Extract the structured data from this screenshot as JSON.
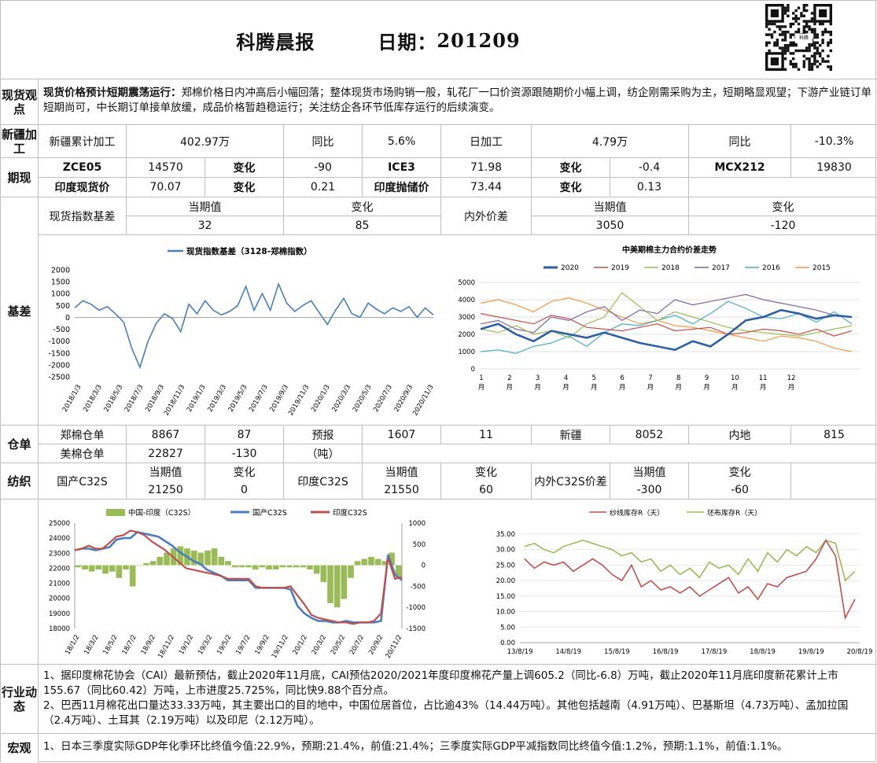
{
  "header": {
    "title": "科腾晨报",
    "date_label": "日期：",
    "date": "201209"
  },
  "spot": {
    "label": "现货观点",
    "headline": "现货价格预计短期震荡运行：",
    "body": "郑棉价格日内冲高后小幅回落；整体现货市场购销一般，轧花厂一口价资源跟随期价小幅上调，纺企刚需采购为主，短期略显观望；下游产业链订单短期尚可，中长期订单接单放缓，成品价格暂趋稳运行；关注纺企各环节低库存运行的后续演变。"
  },
  "xinjiang": {
    "label": "新疆加工",
    "cum_label": "新疆累计加工",
    "cum_value": "402.97万",
    "cum_yoy_label": "同比",
    "cum_yoy": "5.6%",
    "daily_label": "日加工",
    "daily_value": "4.79万",
    "daily_yoy_label": "同比",
    "daily_yoy": "-10.3%"
  },
  "futures": {
    "label": "期现",
    "r1": [
      "ZCE05",
      "14570",
      "变化",
      "-90",
      "ICE3",
      "71.98",
      "变化",
      "-0.4",
      "MCX212",
      "19830"
    ],
    "r2": [
      "印度现货价",
      "70.07",
      "变化",
      "0.21",
      "印度抛储价",
      "73.44",
      "变化",
      "0.13"
    ]
  },
  "basis": {
    "label": "基差",
    "spot_index_label": "现货指数基差",
    "cur_label": "当期值",
    "chg_label": "变化",
    "spot_index_cur": "32",
    "spot_index_chg": "85",
    "inout_label": "内外价差",
    "inout_cur": "3050",
    "inout_chg": "-120"
  },
  "chart_data": [
    {
      "type": "line",
      "title": "",
      "legend": "现货指数基差（3128-郑棉指数）",
      "ylim": [
        -2500,
        2000
      ],
      "yticks": [
        "2000",
        "1500",
        "1000",
        "500",
        "0",
        "-500",
        "-1000",
        "-1500",
        "-2000",
        "-2500"
      ],
      "x_labels": [
        "2018/1/3",
        "2018/3/3",
        "2018/5/3",
        "2018/7/3",
        "2018/9/3",
        "2018/11/3",
        "2019/1/3",
        "2019/3/3",
        "2019/5/3",
        "2019/7/3",
        "2019/9/3",
        "2019/11/3",
        "2020/1/3",
        "2020/3/3",
        "2020/5/3",
        "2020/7/3",
        "2020/9/3",
        "2020/11/3"
      ],
      "series": [
        {
          "name": "现货指数基差（3128-郑棉指数）",
          "color": "#4a7ebb",
          "values": [
            400,
            700,
            550,
            300,
            450,
            150,
            -200,
            -1300,
            -2100,
            -1000,
            -250,
            150,
            -50,
            -600,
            550,
            150,
            700,
            300,
            100,
            250,
            500,
            1300,
            300,
            1000,
            300,
            1400,
            600,
            250,
            500,
            700,
            200,
            -300,
            300,
            800,
            150,
            0,
            600,
            350,
            150,
            400,
            250,
            450,
            0,
            400,
            100
          ]
        }
      ]
    },
    {
      "type": "line",
      "title": "中美期棉主力合约价差走势",
      "ylim": [
        0,
        5000
      ],
      "yticks": [
        "5000",
        "4000",
        "3000",
        "2000",
        "1000",
        "0"
      ],
      "x_labels": [
        "1\n月",
        "2\n月",
        "3\n月",
        "4\n月",
        "5\n月",
        "6\n月",
        "7\n月",
        "8\n月",
        "9\n月",
        "10\n月",
        "11\n月",
        "12\n月"
      ],
      "series": [
        {
          "name": "2020",
          "color": "#2e5fa1",
          "values": [
            2300,
            2600,
            2000,
            1600,
            2200,
            2000,
            1800,
            2100,
            1800,
            1500,
            1300,
            1100,
            1600,
            1300,
            2000,
            2800,
            3000,
            3400,
            3200,
            2900,
            3100,
            3000
          ]
        },
        {
          "name": "2019",
          "color": "#c0504d",
          "values": [
            3200,
            3000,
            2800,
            2600,
            3100,
            2900,
            2400,
            2300,
            2200,
            2400,
            2600,
            2200,
            2300,
            2400,
            2000,
            2100,
            2300,
            2200,
            2000,
            2300,
            1900,
            2200
          ]
        },
        {
          "name": "2018",
          "color": "#9bbb59",
          "values": [
            2300,
            2100,
            2500,
            2000,
            2200,
            1800,
            2600,
            3000,
            4400,
            3600,
            2800,
            3300,
            3000,
            2700,
            2400,
            2200,
            2100,
            2000,
            1900,
            2100,
            2300,
            2500
          ]
        },
        {
          "name": "2017",
          "color": "#8064a2",
          "values": [
            2600,
            2800,
            2300,
            2100,
            3000,
            2800,
            3300,
            3600,
            2800,
            3400,
            3200,
            4000,
            3700,
            3900,
            4100,
            4300,
            4000,
            3800,
            3600,
            3400,
            3100,
            3000
          ]
        },
        {
          "name": "2016",
          "color": "#4bacc6",
          "values": [
            1000,
            1100,
            900,
            1300,
            1500,
            1900,
            1300,
            2100,
            2600,
            2500,
            2800,
            3100,
            2600,
            3200,
            3900,
            3500,
            3000,
            2900,
            3200,
            2700,
            3300,
            2600
          ]
        },
        {
          "name": "2015",
          "color": "#f79646",
          "values": [
            3800,
            4000,
            3700,
            3300,
            3900,
            4100,
            3800,
            3400,
            3000,
            2600,
            2800,
            2500,
            2400,
            2200,
            2000,
            1800,
            1600,
            1900,
            1800,
            1600,
            1200,
            1000
          ]
        }
      ]
    },
    {
      "type": "bar",
      "title": "",
      "legend": [
        "中国-印度（C32S）",
        "国产C32S",
        "印度C32S"
      ],
      "ylim": [
        18000,
        25000
      ],
      "yticks": [
        "25000",
        "24000",
        "23000",
        "22000",
        "21000",
        "20000",
        "19000",
        "18000"
      ],
      "y2lim": [
        -1500,
        1000
      ],
      "y2ticks": [
        "1000",
        "500",
        "0",
        "-500",
        "-1000",
        "-1500"
      ],
      "x_labels": [
        "18/1/2",
        "18/3/2",
        "18/5/2",
        "18/7/2",
        "18/9/2",
        "18/11/2",
        "19/1/2",
        "19/3/2",
        "19/5/2",
        "19/7/2",
        "19/9/2",
        "19/11/2",
        "20/1/2",
        "20/3/2",
        "20/5/2",
        "20/7/2",
        "20/9/2",
        "20/11/2"
      ],
      "series": [
        {
          "name": "中国-印度（C32S）",
          "color": "#9bbb59",
          "values": [
            -50,
            -100,
            -150,
            -100,
            -200,
            -150,
            -300,
            -100,
            -500,
            0,
            50,
            100,
            200,
            300,
            400,
            450,
            400,
            350,
            300,
            350,
            400,
            200,
            100,
            -50,
            -50,
            -50,
            -100,
            -50,
            -100,
            -100,
            -50,
            -50,
            -50,
            -50,
            -100,
            -200,
            -400,
            -900,
            -1000,
            -800,
            -300,
            100,
            150,
            200,
            150,
            100,
            300,
            -300
          ]
        },
        {
          "name": "国产C32S",
          "color": "#4a7ebb",
          "values": [
            23200,
            23300,
            23300,
            23200,
            23300,
            23400,
            23900,
            24000,
            24000,
            24400,
            24300,
            24200,
            24100,
            23800,
            23500,
            23100,
            22800,
            22500,
            22300,
            21900,
            21700,
            21500,
            21200,
            21200,
            21200,
            21200,
            20700,
            20700,
            20700,
            20700,
            20700,
            20600,
            19500,
            19000,
            18700,
            18500,
            18500,
            18400,
            18400,
            18500,
            18400,
            18400,
            18400,
            18400,
            18500,
            22900,
            21600,
            21200
          ]
        },
        {
          "name": "印度C32S",
          "color": "#c0504d",
          "values": [
            23200,
            23300,
            23500,
            23300,
            23300,
            23700,
            24100,
            24200,
            24500,
            24400,
            24200,
            23800,
            23500,
            23200,
            22800,
            22400,
            22000,
            21900,
            21800,
            21700,
            21600,
            21500,
            21300,
            21300,
            21300,
            21300,
            20800,
            20700,
            20700,
            20700,
            20700,
            20800,
            20200,
            19600,
            18900,
            18700,
            18600,
            18500,
            18400,
            18400,
            18300,
            18400,
            18400,
            18500,
            19000,
            22700,
            21300,
            21400
          ]
        }
      ]
    },
    {
      "type": "line",
      "title": "",
      "legend": [
        "纱线库存R（天）",
        "坯布库存R（天）"
      ],
      "ylim": [
        0,
        35
      ],
      "yticks": [
        "35.00",
        "30.00",
        "25.00",
        "20.00",
        "15.00",
        "10.00",
        "5.00",
        "0.00"
      ],
      "x_labels": [
        "13/8/19",
        "14/8/19",
        "15/8/19",
        "16/8/19",
        "17/8/19",
        "18/8/19",
        "19/8/19",
        "20/8/19"
      ],
      "series": [
        {
          "name": "纱线库存R（天）",
          "color": "#c0504d",
          "values": [
            27,
            24,
            26,
            25,
            26,
            23,
            25,
            27,
            25,
            22,
            20,
            25,
            18,
            20,
            17,
            18,
            16,
            18,
            15,
            17,
            19,
            21,
            16,
            18,
            14,
            19,
            18,
            21,
            22,
            23,
            27,
            33,
            28,
            8,
            14
          ]
        },
        {
          "name": "坯布库存R（天）",
          "color": "#9bbb59",
          "values": [
            31,
            32,
            30,
            29,
            31,
            32,
            33,
            32,
            31,
            30,
            28,
            29,
            26,
            27,
            23,
            25,
            22,
            24,
            21,
            26,
            24,
            25,
            22,
            27,
            23,
            29,
            26,
            30,
            28,
            31,
            29,
            33,
            32,
            20,
            23
          ]
        }
      ]
    }
  ],
  "warehouse": {
    "label": "仓单",
    "r1": [
      "郑棉仓单",
      "8867",
      "87",
      "预报",
      "1607",
      "11",
      "新疆",
      "8052",
      "内地",
      "815"
    ],
    "r2": [
      "美棉仓单",
      "22827",
      "-130",
      "（吨）"
    ]
  },
  "spinning": {
    "label": "纺织",
    "cur_label": "当期值",
    "chg_label": "变化",
    "dom_label": "国产C32S",
    "dom_cur": "21250",
    "dom_chg": "0",
    "ind_label": "印度C32S",
    "ind_cur": "21550",
    "ind_chg": "60",
    "spread_label": "内外C32S价差",
    "spread_cur": "-300",
    "spread_chg": "-60"
  },
  "industry": {
    "label": "行业动态",
    "p1": "1、据印度棉花协会（CAI）最新预估，截止2020年11月底，CAI预估2020/2021年度印度棉花产量上调605.2（同比-6.8）万吨，截止2020年11月底印度新花累计上市155.67（同比60.42）万吨，上市进度25.725%，同比快9.88个百分点。",
    "p2": "2、巴西11月棉花出口量达33.33万吨，其主要出口的目的地中，中国位居首位，占比逾43%（14.44万吨）。其他包括越南（4.91万吨）、巴基斯坦（4.73万吨）、孟加拉国（2.4万吨）、土耳其（2.19万吨）以及印尼（2.12万吨）。"
  },
  "macro": {
    "label": "宏观",
    "p1": "1、日本三季度实际GDP年化季环比终值今值:22.9%，预期:21.4%，前值:21.4%；三季度实际GDP平减指数同比终值今值:1.2%，预期:1.1%，前值:1.1%。"
  },
  "qr": {
    "icon": "qr-code-icon",
    "caption": "科腾"
  }
}
